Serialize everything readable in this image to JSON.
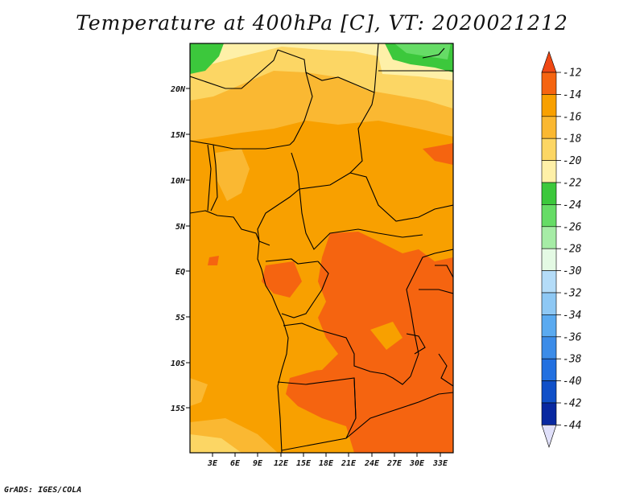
{
  "title": "Temperature at 400hPa [C], VT: 2020021212",
  "credit": "GrADS: IGES/COLA",
  "map": {
    "region": "Central Africa",
    "variable": "Temperature",
    "level": "400hPa",
    "units": "C",
    "valid_time": "2020021212",
    "lat_labels": [
      "20N",
      "15N",
      "10N",
      "5N",
      "EQ",
      "5S",
      "10S",
      "15S"
    ],
    "lon_labels": [
      "3E",
      "6E",
      "9E",
      "12E",
      "15E",
      "18E",
      "21E",
      "24E",
      "27E",
      "30E",
      "33E"
    ]
  },
  "colorbar": {
    "labels": [
      "-12",
      "-14",
      "-16",
      "-18",
      "-20",
      "-22",
      "-24",
      "-26",
      "-28",
      "-30",
      "-32",
      "-34",
      "-36",
      "-38",
      "-40",
      "-42",
      "-44"
    ],
    "colors": {
      "top_arrow": "#f04814",
      "c_12_14": "#f56410",
      "c_14_16": "#f8a000",
      "c_16_18": "#fab832",
      "c_18_20": "#fcd664",
      "c_20_22": "#fef0a8",
      "c_22_24": "#3cc83c",
      "c_24_26": "#66dc66",
      "c_26_28": "#a6eca6",
      "c_28_30": "#e4fae4",
      "c_30_32": "#b4dcf8",
      "c_32_34": "#8ec8f4",
      "c_34_36": "#5aaaf0",
      "c_36_38": "#3c8ce8",
      "c_38_40": "#2270e0",
      "c_40_42": "#1050c8",
      "c_42_44": "#0828a0",
      "bottom_arrow": "#e0e0fa"
    }
  }
}
